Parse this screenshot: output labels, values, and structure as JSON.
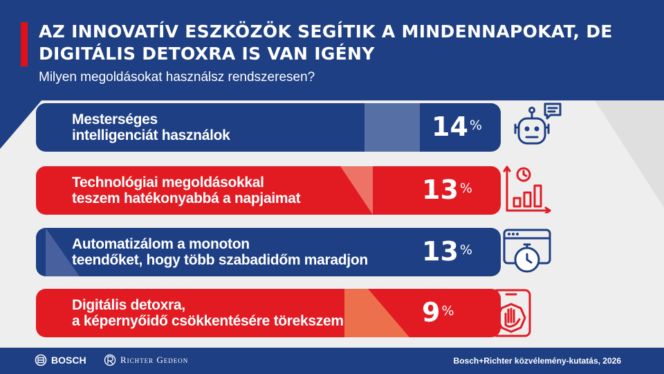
{
  "header": {
    "title_line1": "AZ INNOVATÍV ESZKÖZÖK SEGÍTIK A MINDENNAPOKAT, DE",
    "title_line2": "DIGITÁLIS DETOXRA IS VAN IGÉNY",
    "subtitle": "Milyen megoldásokat használsz rendszeresen?"
  },
  "rows": [
    {
      "line1": "Mesterséges",
      "line2": "intelligenciát használok",
      "value": "14",
      "unit": "%",
      "percent": 14,
      "color": "#1e3f83",
      "icon": "robot-chat-icon"
    },
    {
      "line1": "Technológiai megoldásokkal",
      "line2": "teszem hatékonyabbá a napjaimat",
      "value": "13",
      "unit": "%",
      "percent": 13,
      "color": "#e21b23",
      "icon": "clock-growth-chart-icon"
    },
    {
      "line1": "Automatizálom a monoton",
      "line2": "teendőket, hogy több szabadidőm maradjon",
      "value": "13",
      "unit": "%",
      "percent": 13,
      "color": "#1e3f83",
      "icon": "browser-stopwatch-icon"
    },
    {
      "line1": "Digitális detoxra,",
      "line2": "a képernyőidő csökkentésére törekszem",
      "value": "9",
      "unit": "%",
      "percent": 9,
      "color": "#e21b23",
      "icon": "phone-stop-hand-icon"
    }
  ],
  "footer": {
    "bosch": "BOSCH",
    "richter": "Richter Gedeon",
    "source": "Bosch+Richter közvélemény-kutatás, 2026"
  },
  "colors": {
    "navy": "#1e3f83",
    "red": "#e21b23",
    "gray": "#eeeeee"
  }
}
